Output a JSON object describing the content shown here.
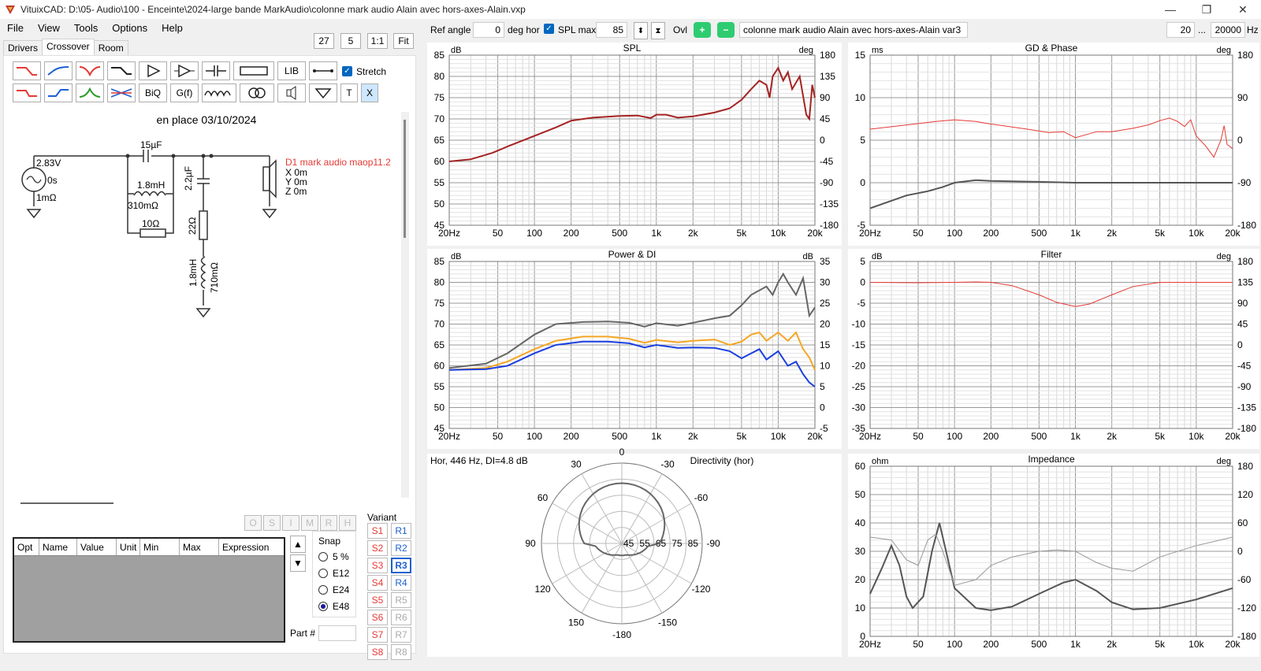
{
  "window": {
    "title": "VituixCAD: D:\\05- Audio\\100 - Enceinte\\2024-large bande MarkAudio\\colonne mark audio Alain avec hors-axes-Alain.vxp"
  },
  "menu": [
    "File",
    "View",
    "Tools",
    "Options",
    "Help"
  ],
  "toolbar": {
    "v27": "27",
    "v5": "5",
    "one_to_one": "1:1",
    "fit": "Fit",
    "ref_angle_label": "Ref angle",
    "ref_angle_value": "0",
    "deg_hor": "deg hor",
    "spl_max_label": "SPL max",
    "spl_max_value": "85",
    "ovl_label": "Ovl",
    "overlay_name": "colonne mark audio Alain avec hors-axes-Alain var3",
    "freq_min": "20",
    "freq_sep": "...",
    "freq_max": "20000",
    "hz": "Hz"
  },
  "tabs": [
    "Drivers",
    "Crossover",
    "Room"
  ],
  "tools": {
    "lib": "LIB",
    "stretch": "Stretch",
    "biq": "BiQ",
    "gf": "G(f)",
    "t": "T",
    "x": "X"
  },
  "schematic": {
    "title": "en place 03/10/2024",
    "source_v": "2.83V",
    "source_t": "0s",
    "source_r": "1mΩ",
    "c1": "15µF",
    "l1": "1.8mH",
    "l1r": "310mΩ",
    "r1": "10Ω",
    "c2": "2.2µF",
    "r2": "22Ω",
    "l2": "1.8mH",
    "l2r": "710mΩ",
    "driver": "D1 mark audio maop11.2",
    "dx": "X 0m",
    "dy": "Y 0m",
    "dz": "Z 0m"
  },
  "bottom": {
    "omsh": [
      "O",
      "S",
      "I",
      "M",
      "R",
      "H"
    ],
    "cols": [
      "Opt",
      "Name",
      "Value",
      "Unit",
      "Min",
      "Max",
      "Expression"
    ],
    "snap_label": "Snap",
    "snap": [
      "5 %",
      "E12",
      "E24",
      "E48"
    ],
    "snap_selected": 3,
    "variant_label": "Variant",
    "s": [
      "S1",
      "S2",
      "S3",
      "S4",
      "S5",
      "S6",
      "S7",
      "S8"
    ],
    "r": [
      "R1",
      "R2",
      "R3",
      "R4",
      "R5",
      "R6",
      "R7",
      "R8"
    ],
    "part_label": "Part #"
  },
  "charts": {
    "spl": {
      "title": "SPL",
      "yl": "dB",
      "yr": "deg",
      "left": [
        "85",
        "80",
        "75",
        "70",
        "65",
        "60",
        "55",
        "50",
        "45"
      ],
      "right": [
        "180",
        "135",
        "90",
        "45",
        "0",
        "-45",
        "-90",
        "-135",
        "-180"
      ]
    },
    "gd": {
      "title": "GD & Phase",
      "yl": "ms",
      "yr": "deg",
      "left": [
        "15",
        "10",
        "5",
        "0",
        "-5"
      ],
      "right": [
        "180",
        "90",
        "0",
        "-90",
        "-180"
      ]
    },
    "power": {
      "title": "Power & DI",
      "yl": "dB",
      "yr": "dB",
      "left": [
        "85",
        "80",
        "75",
        "70",
        "65",
        "60",
        "55",
        "50",
        "45"
      ],
      "right": [
        "35",
        "30",
        "25",
        "20",
        "15",
        "10",
        "5",
        "0",
        "-5"
      ]
    },
    "filter": {
      "title": "Filter",
      "yl": "dB",
      "yr": "deg",
      "left": [
        "5",
        "0",
        "-5",
        "-10",
        "-15",
        "-20",
        "-25",
        "-30",
        "-35"
      ],
      "right": [
        "180",
        "135",
        "90",
        "45",
        "0",
        "-45",
        "-90",
        "-135",
        "-180"
      ]
    },
    "imp": {
      "title": "Impedance",
      "yl": "ohm",
      "yr": "deg",
      "left": [
        "60",
        "50",
        "40",
        "30",
        "20",
        "10",
        "0"
      ],
      "right": [
        "180",
        "120",
        "60",
        "0",
        "-60",
        "-120",
        "-180"
      ]
    },
    "xticks": [
      "20Hz",
      "50",
      "100",
      "200",
      "500",
      "1k",
      "2k",
      "5k",
      "10k",
      "20k"
    ],
    "polar": {
      "title": "Directivity (hor)",
      "info": "Hor, 446 Hz, DI=4.8 dB",
      "angles": [
        "0",
        "-30",
        "-60",
        "-90",
        "-120",
        "-150",
        "-180",
        "150",
        "120",
        "90",
        "60",
        "30"
      ],
      "rings": [
        "45",
        "55",
        "65",
        "75",
        "85"
      ]
    }
  }
}
